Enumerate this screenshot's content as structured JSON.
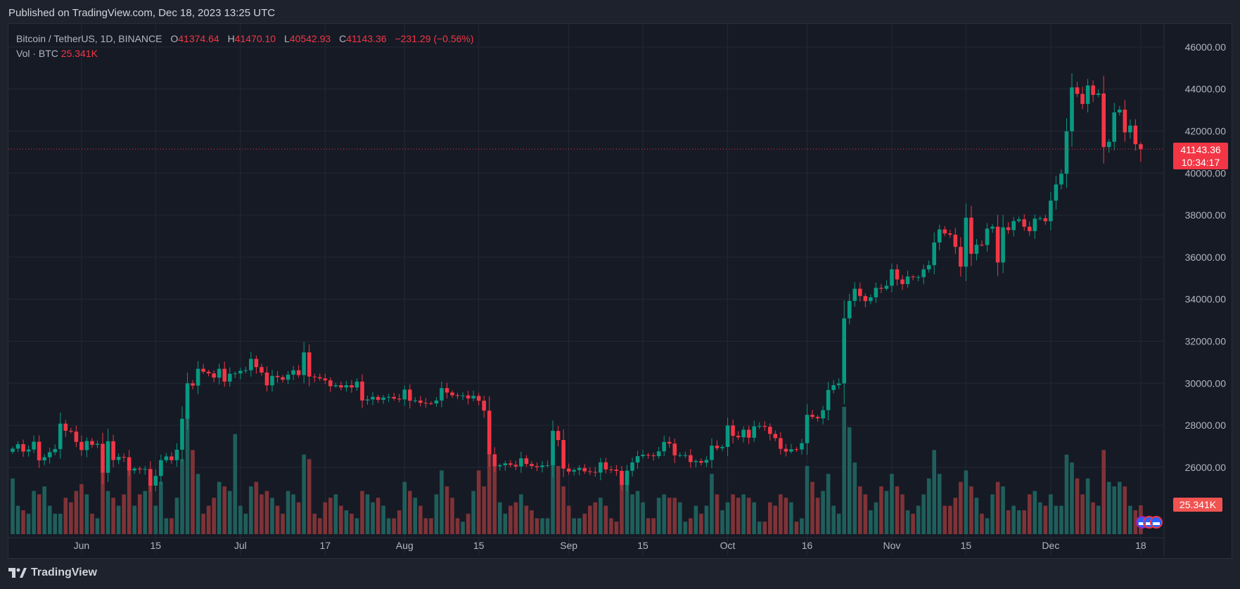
{
  "published": "Published on TradingView.com, Dec 18, 2023 13:25 UTC",
  "legend": {
    "symbol": "Bitcoin / TetherUS, 1D, BINANCE",
    "o_label": "O",
    "o": "41374.64",
    "h_label": "H",
    "h": "41470.10",
    "l_label": "L",
    "l": "40542.93",
    "c_label": "C",
    "c": "41143.36",
    "change": "−231.29 (−0.56%)",
    "vol_label": "Vol · BTC",
    "vol": "25.341K"
  },
  "price_label": {
    "price": "41143.36",
    "countdown": "10:34:17"
  },
  "volume_label": "25.341K",
  "footer": {
    "logo_text": "TradingView"
  },
  "colors": {
    "up": "#089981",
    "down": "#f23645",
    "vol_up": "#1f5f5b",
    "vol_down": "#7f3337",
    "background": "#161a25",
    "grid": "#242834"
  },
  "icons": [
    "tradingview-logo-icon",
    "us-flag-event-icon"
  ],
  "chart_data": {
    "type": "candlestick",
    "symbol": "BTCUSDT",
    "timeframe": "1D",
    "start_date": "2023-05-19",
    "end_date": "2023-12-18",
    "ylim": [
      25000,
      46500
    ],
    "grid": true,
    "y_ticks": [
      "26000.00",
      "28000.00",
      "30000.00",
      "32000.00",
      "34000.00",
      "36000.00",
      "38000.00",
      "40000.00",
      "42000.00",
      "44000.00",
      "46000.00"
    ],
    "x_ticks": [
      {
        "label": "Jun",
        "date": "2023-06-01"
      },
      {
        "label": "15",
        "date": "2023-06-15"
      },
      {
        "label": "Jul",
        "date": "2023-07-01"
      },
      {
        "label": "17",
        "date": "2023-07-17"
      },
      {
        "label": "Aug",
        "date": "2023-08-01"
      },
      {
        "label": "15",
        "date": "2023-08-15"
      },
      {
        "label": "Sep",
        "date": "2023-09-01"
      },
      {
        "label": "15",
        "date": "2023-09-15"
      },
      {
        "label": "Oct",
        "date": "2023-10-01"
      },
      {
        "label": "16",
        "date": "2023-10-16"
      },
      {
        "label": "Nov",
        "date": "2023-11-01"
      },
      {
        "label": "15",
        "date": "2023-11-15"
      },
      {
        "label": "Dec",
        "date": "2023-12-01"
      },
      {
        "label": "18",
        "date": "2023-12-18"
      }
    ],
    "last_candle": {
      "open": 41374.64,
      "high": 41470.1,
      "low": 40542.93,
      "close": 41143.36,
      "volume_k": 25.341
    },
    "close": [
      26890,
      27100,
      26750,
      26850,
      27220,
      26330,
      26480,
      26720,
      26870,
      28080,
      27740,
      27700,
      27210,
      26820,
      27250,
      27070,
      27120,
      25740,
      27240,
      26350,
      26500,
      26480,
      25850,
      25940,
      25900,
      25920,
      25130,
      25590,
      26340,
      26520,
      26340,
      26840,
      28310,
      30000,
      29890,
      30690,
      30550,
      30470,
      30270,
      30690,
      30080,
      30450,
      30470,
      30590,
      30620,
      31160,
      30770,
      30510,
      29900,
      30350,
      30290,
      30170,
      30410,
      30620,
      30390,
      31470,
      30320,
      30290,
      30230,
      30140,
      29860,
      29910,
      29800,
      29910,
      29800,
      30080,
      29180,
      29230,
      29350,
      29210,
      29320,
      29350,
      29270,
      29230,
      29700,
      29170,
      29180,
      29070,
      29050,
      29040,
      29180,
      29770,
      29560,
      29430,
      29400,
      29420,
      29280,
      29400,
      29170,
      28700,
      26620,
      26050,
      26100,
      26190,
      26120,
      26040,
      26430,
      26160,
      26060,
      26010,
      26090,
      26100,
      27730,
      27300,
      25940,
      25800,
      25870,
      25970,
      25810,
      25780,
      25750,
      26240,
      25900,
      25890,
      25830,
      25160,
      25840,
      26230,
      26530,
      26600,
      26570,
      26530,
      26760,
      27210,
      27130,
      26570,
      26580,
      26580,
      26250,
      26300,
      26220,
      26350,
      27030,
      26910,
      26970,
      27990,
      27500,
      27430,
      27790,
      27410,
      27950,
      27970,
      27930,
      27590,
      27390,
      26880,
      26750,
      26860,
      26850,
      27150,
      28500,
      28400,
      28330,
      28720,
      29680,
      29910,
      29990,
      33090,
      33920,
      34500,
      34150,
      33910,
      34090,
      34540,
      34500,
      34640,
      35420,
      34940,
      34720,
      35080,
      35050,
      35050,
      35420,
      35620,
      36700,
      37320,
      37130,
      37070,
      36490,
      35550,
      37880,
      36160,
      36590,
      36580,
      37360,
      37450,
      35750,
      37420,
      37290,
      37720,
      37800,
      37450,
      37240,
      37830,
      37850,
      37710,
      38690,
      39460,
      39970,
      41990,
      44080,
      43770,
      43290,
      44170,
      43720,
      43790,
      41240,
      41490,
      42890,
      43020,
      41940,
      42260,
      41374.64,
      41143.36
    ],
    "volume_k": [
      49,
      25,
      21,
      18,
      38,
      35,
      42,
      25,
      18,
      18,
      32,
      28,
      38,
      44,
      35,
      18,
      14,
      54,
      38,
      32,
      25,
      35,
      66,
      25,
      35,
      38,
      49,
      25,
      46,
      14,
      14,
      32,
      66,
      108,
      74,
      53,
      18,
      25,
      32,
      46,
      42,
      38,
      88,
      25,
      18,
      42,
      46,
      35,
      38,
      32,
      25,
      18,
      38,
      35,
      28,
      70,
      66,
      18,
      14,
      28,
      32,
      35,
      25,
      21,
      18,
      14,
      38,
      35,
      28,
      32,
      25,
      14,
      14,
      21,
      46,
      38,
      32,
      25,
      14,
      14,
      35,
      56,
      42,
      32,
      14,
      11,
      18,
      38,
      56,
      42,
      88,
      60,
      28,
      18,
      25,
      28,
      35,
      25,
      21,
      14,
      14,
      14,
      91,
      60,
      42,
      25,
      14,
      14,
      18,
      25,
      28,
      32,
      25,
      14,
      11,
      53,
      46,
      35,
      38,
      28,
      14,
      14,
      32,
      35,
      32,
      32,
      28,
      11,
      14,
      25,
      18,
      25,
      53,
      35,
      21,
      28,
      35,
      32,
      35,
      32,
      28,
      11,
      11,
      28,
      25,
      35,
      32,
      28,
      11,
      14,
      60,
      46,
      32,
      38,
      53,
      25,
      18,
      112,
      94,
      63,
      42,
      35,
      21,
      28,
      42,
      38,
      53,
      42,
      35,
      21,
      18,
      25,
      35,
      49,
      74,
      53,
      25,
      25,
      32,
      46,
      56,
      42,
      32,
      18,
      14,
      35,
      46,
      42,
      21,
      25,
      21,
      21,
      35,
      38,
      28,
      25,
      35,
      25,
      25,
      70,
      63,
      49,
      35,
      49,
      28,
      25,
      74,
      46,
      42,
      46,
      42,
      25,
      21,
      25.341
    ]
  }
}
